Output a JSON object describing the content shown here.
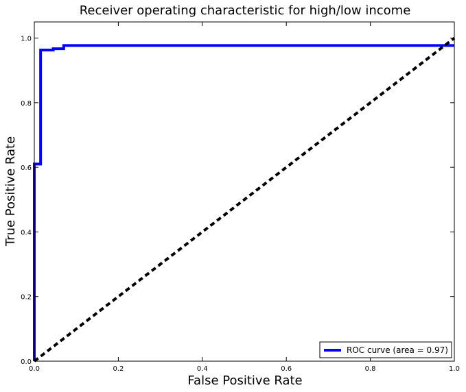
{
  "chart_data": {
    "type": "line",
    "title": "Receiver operating characteristic for high/low income",
    "xlabel": "False Positive Rate",
    "ylabel": "True Positive Rate",
    "xlim": [
      0.0,
      1.0
    ],
    "ylim": [
      0.0,
      1.05
    ],
    "xticks": [
      "0.0",
      "0.2",
      "0.4",
      "0.6",
      "0.8",
      "1.0"
    ],
    "yticks": [
      "0.0",
      "0.2",
      "0.4",
      "0.6",
      "0.8",
      "1.0"
    ],
    "grid": false,
    "legend_position": "lower-right",
    "series": [
      {
        "name": "ROC curve (area = 0.97)",
        "color": "#0000ff",
        "style": "solid",
        "x": [
          0.0,
          0.0,
          0.015,
          0.015,
          0.045,
          0.045,
          0.07,
          0.07,
          1.0
        ],
        "y": [
          0.0,
          0.61,
          0.61,
          0.963,
          0.963,
          0.967,
          0.967,
          0.977,
          0.977
        ]
      },
      {
        "name": "",
        "color": "#000000",
        "style": "dashed",
        "x": [
          0.0,
          1.0
        ],
        "y": [
          0.0,
          1.0
        ]
      }
    ]
  }
}
